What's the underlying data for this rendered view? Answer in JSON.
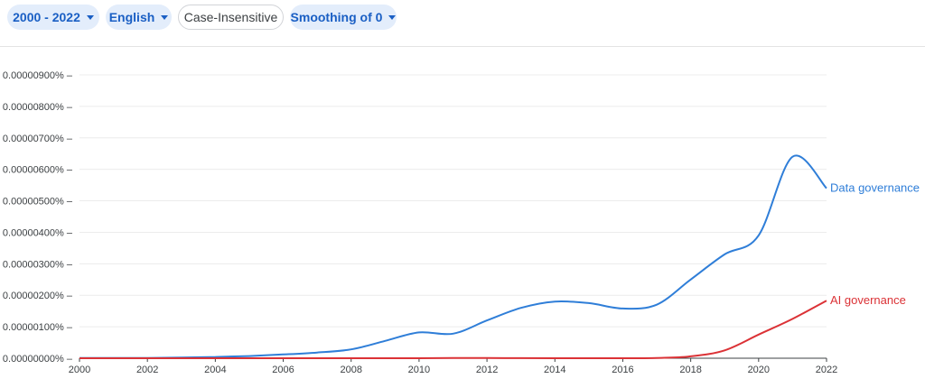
{
  "toolbar": {
    "year_range": "2000 - 2022",
    "language": "English",
    "case": "Case-Insensitive",
    "smoothing": "Smoothing of 0"
  },
  "colors": {
    "accent": "#1a5fc4",
    "chip_bg": "#e3edfb"
  },
  "chart_data": {
    "type": "line",
    "title": "",
    "xlabel": "",
    "ylabel": "",
    "xlim": [
      2000,
      2022
    ],
    "ylim": [
      0,
      9e-06
    ],
    "grid": true,
    "x_ticks": [
      "2000",
      "2002",
      "2004",
      "2006",
      "2008",
      "2010",
      "2012",
      "2014",
      "2016",
      "2018",
      "2020",
      "2022"
    ],
    "y_ticks": [
      "0.00000000%",
      "0.00000100%",
      "0.00000200%",
      "0.00000300%",
      "0.00000400%",
      "0.00000500%",
      "0.00000600%",
      "0.00000700%",
      "0.00000800%",
      "0.00000900%"
    ],
    "legend": "inline-right",
    "x": [
      2000,
      2001,
      2002,
      2003,
      2004,
      2005,
      2006,
      2007,
      2008,
      2009,
      2010,
      2011,
      2012,
      2013,
      2014,
      2015,
      2016,
      2017,
      2018,
      2019,
      2020,
      2021,
      2022
    ],
    "series": [
      {
        "name": "Data governance",
        "color": "#2f7ed8",
        "values": [
          1e-08,
          1e-08,
          1e-08,
          2e-08,
          4e-08,
          7e-08,
          1.2e-07,
          1.8e-07,
          2.8e-07,
          5.5e-07,
          8.2e-07,
          7.8e-07,
          1.2e-06,
          1.6e-06,
          1.8e-06,
          1.75e-06,
          1.58e-06,
          1.7e-06,
          2.5e-06,
          3.3e-06,
          3.9e-06,
          6.4e-06,
          5.4e-06
        ]
      },
      {
        "name": "AI governance",
        "color": "#db3236",
        "values": [
          0,
          0,
          0,
          0,
          0,
          0,
          0,
          0,
          0,
          0,
          0,
          5e-09,
          5e-09,
          3e-09,
          0,
          0,
          0,
          1e-08,
          6e-08,
          2.5e-07,
          7.5e-07,
          1.25e-06,
          1.83e-06
        ]
      }
    ]
  }
}
